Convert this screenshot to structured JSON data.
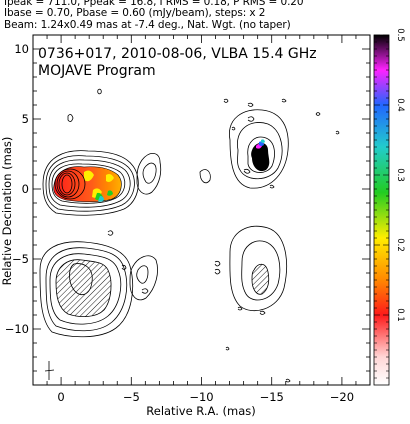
{
  "header": {
    "line1": "Ipeak = 711.0, Ppeak = 16.8, I RMS = 0.18, P RMS = 0.20",
    "line2": "Ibase = 0.70, Pbase = 0.60 (mJy/beam), steps: x 2",
    "line3": "Beam: 1.24x0.49 mas at -7.4 deg., Nat. Wgt. (no taper)"
  },
  "chart_data": {
    "type": "heatmap",
    "annotation_line1": "0736+017, 2010-08-06, VLBA 15.4 GHz",
    "annotation_line2": "MOJAVE Program",
    "xlabel": "Relative R.A. (mas)",
    "ylabel": "Relative Decination (mas)",
    "xlim": [
      2.0,
      -22.0
    ],
    "ylim": [
      -14.0,
      11.0
    ],
    "xticks": [
      0,
      -5,
      -10,
      -15,
      -20
    ],
    "xtick_labels": [
      "0",
      "−5",
      "−10",
      "−15",
      "−20"
    ],
    "yticks": [
      10,
      5,
      0,
      -5,
      -10
    ],
    "ytick_labels": [
      "10",
      "5",
      "0",
      "−5",
      "−10"
    ],
    "colorbar": {
      "range": [
        0,
        0.5
      ],
      "ticks": [
        0.1,
        0.2,
        0.3,
        0.4,
        0.5
      ],
      "tick_labels": [
        "0.1",
        "0.2",
        "0.3",
        "0.4",
        "0.5"
      ],
      "colors": [
        "#ffffff",
        "#ffcccc",
        "#ff2222",
        "#ff8800",
        "#ffee00",
        "#22cc22",
        "#22cccc",
        "#2266ff",
        "#ff22ff",
        "#000000"
      ]
    },
    "components": [
      {
        "name": "core-total-intensity",
        "x": 0.2,
        "y": 0.2,
        "polarization": "colored"
      },
      {
        "name": "northern-knot",
        "x": -13.0,
        "y": 2.5,
        "polarization": "colored"
      },
      {
        "name": "core-polarization",
        "x": 1.0,
        "y": -6.7,
        "polarization": "hatched"
      },
      {
        "name": "northern-knot-polarization",
        "x": -13.0,
        "y": -7.0,
        "polarization": "hatched"
      }
    ]
  }
}
